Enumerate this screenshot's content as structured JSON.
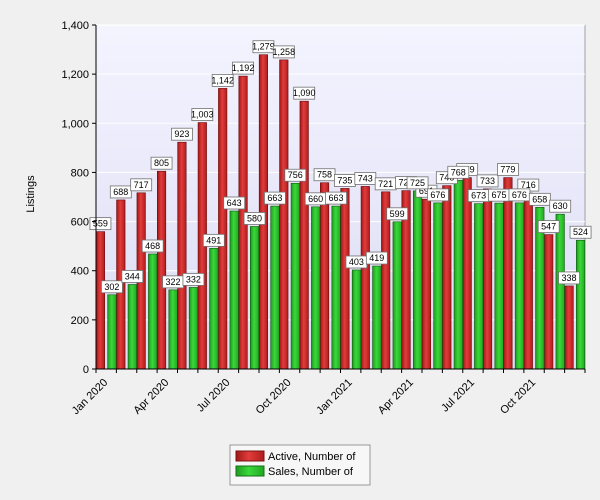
{
  "chart_data": {
    "type": "bar",
    "ylabel": "Listings",
    "ylim": [
      0,
      1400
    ],
    "yticks": [
      0,
      200,
      400,
      600,
      800,
      1000,
      1200,
      1400
    ],
    "ytick_labels": [
      "0",
      "200",
      "400",
      "600",
      "800",
      "1,000",
      "1,200",
      "1,400"
    ],
    "categories": [
      "Jan 2020",
      "Feb 2020",
      "Mar 2020",
      "Apr 2020",
      "May 2020",
      "Jun 2020",
      "Jul 2020",
      "Aug 2020",
      "Sep 2020",
      "Oct 2020",
      "Nov 2020",
      "Dec 2020",
      "Jan 2021",
      "Feb 2021",
      "Mar 2021",
      "Apr 2021",
      "May 2021",
      "Jun 2021",
      "Jul 2021",
      "Aug 2021",
      "Sep 2021",
      "Oct 2021",
      "Nov 2021",
      "Dec 2021"
    ],
    "xtick_labels": [
      {
        "index": 0,
        "label": "Jan 2020"
      },
      {
        "index": 3,
        "label": "Apr 2020"
      },
      {
        "index": 6,
        "label": "Jul 2020"
      },
      {
        "index": 9,
        "label": "Oct 2020"
      },
      {
        "index": 12,
        "label": "Jan 2021"
      },
      {
        "index": 15,
        "label": "Apr 2021"
      },
      {
        "index": 18,
        "label": "Jul 2021"
      },
      {
        "index": 21,
        "label": "Oct 2021"
      }
    ],
    "series": [
      {
        "name": "Active, Number of",
        "color": "#d42a2a",
        "values": [
          559,
          688,
          717,
          805,
          923,
          1003,
          1142,
          1192,
          1279,
          1258,
          1090,
          758,
          735,
          743,
          721,
          726,
          691,
          746,
          779,
          733,
          779,
          716,
          547,
          338
        ],
        "labels": [
          "559",
          "688",
          "717",
          "805",
          "923",
          "1,003",
          "1,142",
          "1,192",
          "1,279",
          "1,258",
          "1,090",
          "758",
          "735",
          "743",
          "721",
          "726",
          "691",
          "746",
          "779",
          "733",
          "779",
          "716",
          "547",
          "338"
        ]
      },
      {
        "name": "Sales, Number of",
        "color": "#2ec42e",
        "values": [
          302,
          344,
          468,
          322,
          332,
          491,
          643,
          580,
          663,
          756,
          660,
          663,
          403,
          419,
          599,
          725,
          676,
          768,
          673,
          675,
          676,
          658,
          630,
          524
        ],
        "labels": [
          "302",
          "344",
          "468",
          "322",
          "332",
          "491",
          "643",
          "580",
          "663",
          "756",
          "660",
          "663",
          "403",
          "419",
          "599",
          "725",
          "676",
          "768",
          "673",
          "675",
          "676",
          "658",
          "630",
          "524"
        ]
      }
    ],
    "grid": true,
    "legend_position": "bottom-center",
    "plot_background": "#e6e6fa"
  }
}
